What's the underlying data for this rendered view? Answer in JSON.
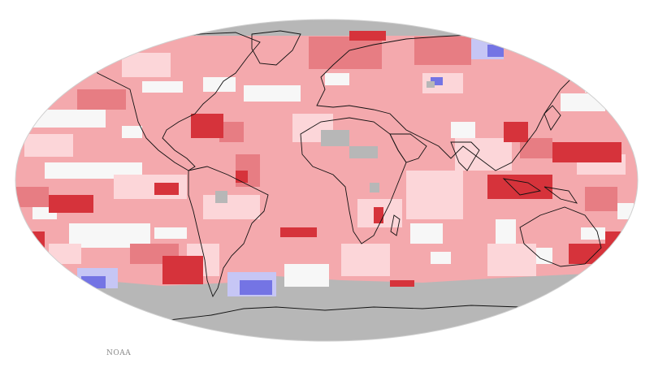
{
  "map": {
    "type": "gridded-anomaly-map",
    "projection": "Robinson",
    "colors": {
      "no_data": "#b7b7b7",
      "near_zero": "#f7f7f7",
      "warm_1": "#fcd6d9",
      "warm_2": "#f4a9ad",
      "warm_3": "#e77d83",
      "warm_4": "#d6333b",
      "cool_1": "#c6c6f5",
      "cool_2": "#7474e4",
      "outline": "#111111"
    }
  },
  "credit": {
    "text": "NOAA"
  }
}
